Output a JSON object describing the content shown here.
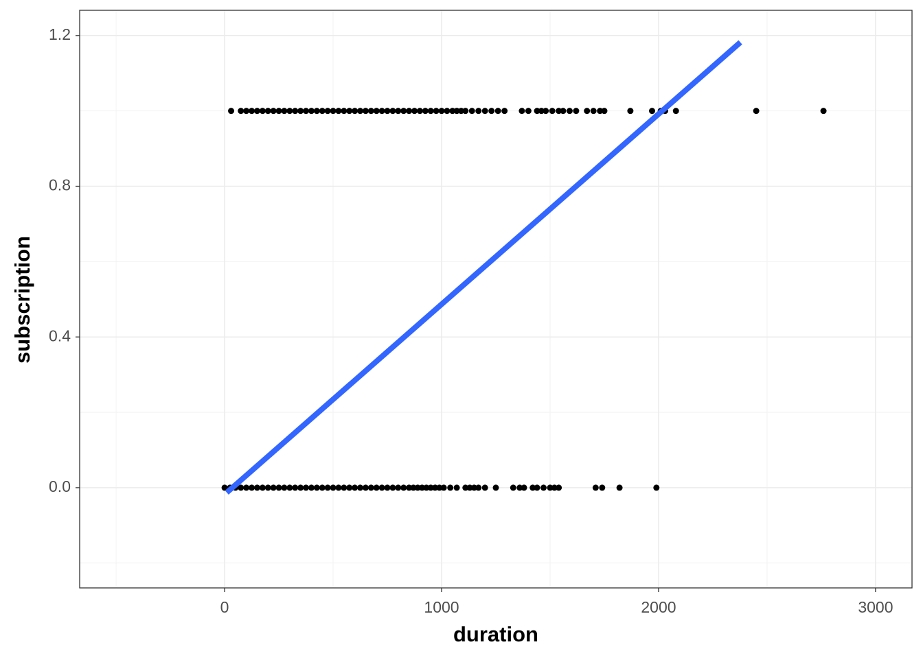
{
  "chart_data": {
    "type": "scatter",
    "x_label": "duration",
    "y_label": "subscription",
    "xlim": [
      -668,
      3168
    ],
    "ylim": [
      -0.266,
      1.267
    ],
    "xticks": [
      0,
      1000,
      2000,
      3000
    ],
    "yticks": [
      {
        "value": 0,
        "label": "0.0"
      },
      {
        "value": 0.4,
        "label": "0.4"
      },
      {
        "value": 0.8,
        "label": "0.8"
      },
      {
        "value": 1.2,
        "label": "1.2"
      }
    ],
    "grid": true,
    "series": [
      {
        "color": "#000000",
        "x": [
          0,
          25,
          50,
          75,
          100,
          125,
          150,
          175,
          200,
          225,
          250,
          275,
          300,
          325,
          350,
          375,
          400,
          425,
          450,
          475,
          500,
          525,
          550,
          575,
          600,
          625,
          650,
          675,
          700,
          725,
          750,
          775,
          800,
          825,
          850,
          870,
          890,
          910,
          930,
          950,
          970,
          990,
          1010,
          1040,
          1070,
          1110,
          1130,
          1150,
          1170,
          1200,
          1250,
          1330,
          1360,
          1380,
          1420,
          1440,
          1470,
          1500,
          1520,
          1540,
          1710,
          1740,
          1820,
          1990
        ],
        "values": [
          0,
          0,
          0,
          0,
          0,
          0,
          0,
          0,
          0,
          0,
          0,
          0,
          0,
          0,
          0,
          0,
          0,
          0,
          0,
          0,
          0,
          0,
          0,
          0,
          0,
          0,
          0,
          0,
          0,
          0,
          0,
          0,
          0,
          0,
          0,
          0,
          0,
          0,
          0,
          0,
          0,
          0,
          0,
          0,
          0,
          0,
          0,
          0,
          0,
          0,
          0,
          0,
          0,
          0,
          0,
          0,
          0,
          0,
          0,
          0,
          0,
          0,
          0,
          0
        ]
      },
      {
        "color": "#000000",
        "x": [
          30,
          75,
          100,
          125,
          150,
          175,
          200,
          225,
          250,
          275,
          300,
          325,
          350,
          375,
          400,
          425,
          450,
          475,
          500,
          525,
          550,
          575,
          600,
          625,
          650,
          675,
          700,
          725,
          750,
          775,
          800,
          825,
          850,
          875,
          900,
          925,
          950,
          975,
          1000,
          1025,
          1050,
          1070,
          1090,
          1110,
          1140,
          1170,
          1200,
          1230,
          1260,
          1290,
          1370,
          1400,
          1440,
          1460,
          1480,
          1510,
          1540,
          1560,
          1590,
          1620,
          1670,
          1700,
          1730,
          1750,
          1870,
          1970,
          2010,
          2030,
          2080,
          2450,
          2760
        ],
        "values": [
          1,
          1,
          1,
          1,
          1,
          1,
          1,
          1,
          1,
          1,
          1,
          1,
          1,
          1,
          1,
          1,
          1,
          1,
          1,
          1,
          1,
          1,
          1,
          1,
          1,
          1,
          1,
          1,
          1,
          1,
          1,
          1,
          1,
          1,
          1,
          1,
          1,
          1,
          1,
          1,
          1,
          1,
          1,
          1,
          1,
          1,
          1,
          1,
          1,
          1,
          1,
          1,
          1,
          1,
          1,
          1,
          1,
          1,
          1,
          1,
          1,
          1,
          1,
          1,
          1,
          1,
          1,
          1,
          1,
          1,
          1
        ]
      }
    ],
    "fit_line": {
      "color": "#3366ff",
      "x": [
        10,
        2377
      ],
      "values": [
        -0.013,
        1.182
      ]
    }
  }
}
